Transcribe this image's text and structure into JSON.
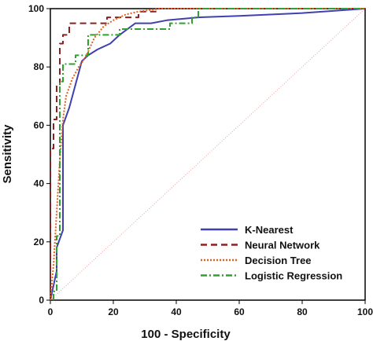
{
  "chart_data": {
    "type": "line",
    "xlabel": "100 - Specificity",
    "ylabel": "Sensitivity",
    "xlim": [
      0,
      100
    ],
    "ylim": [
      0,
      100
    ],
    "x_ticks": [
      "0",
      "20",
      "40",
      "60",
      "80",
      "100"
    ],
    "y_ticks": [
      "0",
      "20",
      "40",
      "60",
      "80",
      "100"
    ],
    "grid": false,
    "legend_position": "bottom-right",
    "reference_line": {
      "x": [
        0,
        100
      ],
      "y": [
        0,
        100
      ],
      "color": "#e8a0a0",
      "style": "dotted"
    },
    "series": [
      {
        "name": "K-Nearest",
        "color": "#4040b0",
        "style": "solid",
        "x": [
          0,
          1,
          2,
          2,
          4,
          4,
          6,
          10,
          12,
          15,
          19,
          22,
          27,
          32,
          37,
          47,
          60,
          80,
          100
        ],
        "y": [
          0,
          5,
          10,
          18,
          24,
          60,
          66,
          82,
          84,
          86,
          88,
          91,
          95,
          95,
          96,
          97,
          97.5,
          98.5,
          100
        ]
      },
      {
        "name": "Neural Network",
        "color": "#8b2020",
        "style": "dashed",
        "x": [
          0,
          0,
          1,
          1,
          2,
          2,
          3,
          3,
          4,
          4,
          6,
          6,
          18,
          18,
          28,
          28,
          34,
          34,
          100
        ],
        "y": [
          0,
          52,
          52,
          62,
          62,
          74,
          74,
          88,
          88,
          91,
          91,
          95,
          95,
          97,
          97,
          99,
          99,
          100,
          100
        ]
      },
      {
        "name": "Decision Tree",
        "color": "#e06020",
        "style": "dotted",
        "x": [
          0,
          1,
          2,
          3,
          4,
          5,
          7,
          9,
          11,
          14,
          17,
          20,
          24,
          28,
          35,
          45,
          60,
          100
        ],
        "y": [
          0,
          12,
          30,
          48,
          62,
          70,
          76,
          80,
          83,
          90,
          94,
          96,
          98,
          99,
          100,
          100,
          100,
          100
        ]
      },
      {
        "name": "Logistic Regression",
        "color": "#30a030",
        "style": "dashdot",
        "x": [
          1,
          1,
          2,
          2,
          3,
          3,
          4,
          4,
          5,
          5,
          8,
          8,
          12,
          12,
          22,
          22,
          30,
          30,
          38,
          38,
          45,
          45,
          47,
          47,
          100
        ],
        "y": [
          0,
          3,
          3,
          22,
          22,
          75,
          75,
          81,
          81,
          81,
          81,
          84,
          84,
          91,
          91,
          93,
          93,
          93,
          93,
          95,
          95,
          97,
          97,
          100,
          100
        ]
      }
    ]
  }
}
